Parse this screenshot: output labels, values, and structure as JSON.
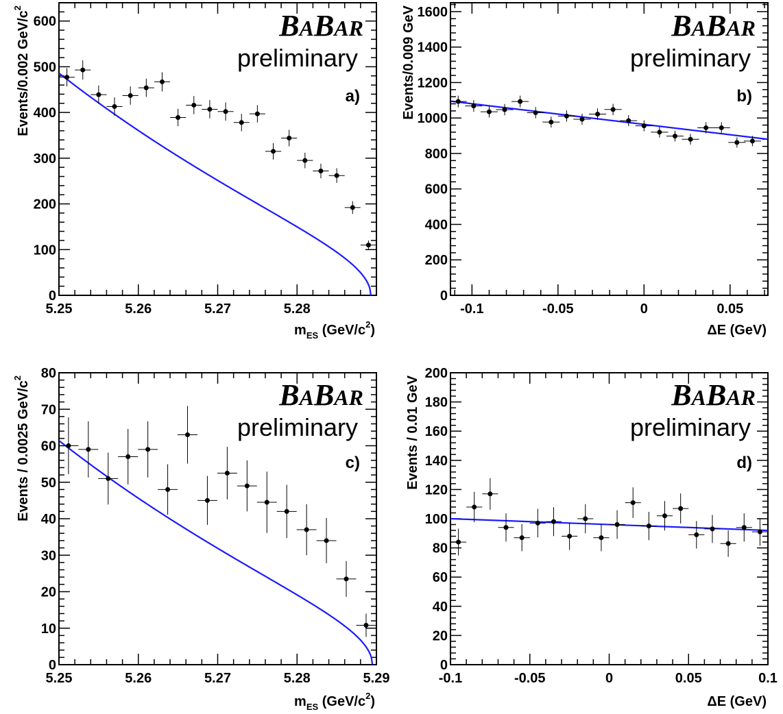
{
  "chart_data": [
    {
      "type": "scatter",
      "panel_label": "a)",
      "logo": "BABAR",
      "logo_parts": [
        "B",
        "A",
        "B",
        "AR"
      ],
      "preliminary": "preliminary",
      "xlabel": "m",
      "xlabel_sub": "ES",
      "xlabel_unit": " (GeV/c",
      "xlabel_sup": "2",
      "xlabel_end": ")",
      "ylabel": "Events/0.002 GeV/c",
      "ylabel_sup": "2",
      "xlim": [
        5.25,
        5.29
      ],
      "ylim": [
        0,
        640
      ],
      "x_ticks": [
        5.25,
        5.26,
        5.27,
        5.28
      ],
      "x_tick_labels": [
        "5.25",
        "5.26",
        "5.27",
        "5.28"
      ],
      "y_ticks": [
        0,
        100,
        200,
        300,
        400,
        500,
        600
      ],
      "y_tick_labels": [
        "0",
        "100",
        "200",
        "300",
        "400",
        "500",
        "600"
      ],
      "x_err": 0.001,
      "points": [
        {
          "x": 5.251,
          "y": 477,
          "err": 20
        },
        {
          "x": 5.253,
          "y": 493,
          "err": 21
        },
        {
          "x": 5.255,
          "y": 439,
          "err": 20
        },
        {
          "x": 5.257,
          "y": 413,
          "err": 20
        },
        {
          "x": 5.259,
          "y": 437,
          "err": 20
        },
        {
          "x": 5.261,
          "y": 454,
          "err": 20
        },
        {
          "x": 5.263,
          "y": 467,
          "err": 21
        },
        {
          "x": 5.265,
          "y": 389,
          "err": 19
        },
        {
          "x": 5.267,
          "y": 416,
          "err": 20
        },
        {
          "x": 5.269,
          "y": 407,
          "err": 20
        },
        {
          "x": 5.271,
          "y": 402,
          "err": 20
        },
        {
          "x": 5.273,
          "y": 378,
          "err": 19
        },
        {
          "x": 5.275,
          "y": 397,
          "err": 19
        },
        {
          "x": 5.277,
          "y": 315,
          "err": 18
        },
        {
          "x": 5.279,
          "y": 344,
          "err": 18
        },
        {
          "x": 5.281,
          "y": 295,
          "err": 17
        },
        {
          "x": 5.283,
          "y": 272,
          "err": 16
        },
        {
          "x": 5.285,
          "y": 262,
          "err": 16
        },
        {
          "x": 5.287,
          "y": 192,
          "err": 14
        },
        {
          "x": 5.289,
          "y": 110,
          "err": 10
        }
      ],
      "fit": {
        "type": "argus",
        "norm": 486,
        "x0": 5.25,
        "endpoint": 5.2893,
        "curvature": 0.6
      }
    },
    {
      "type": "scatter",
      "panel_label": "b)",
      "logo": "BABAR",
      "logo_parts": [
        "B",
        "A",
        "B",
        "AR"
      ],
      "preliminary": "preliminary",
      "xlabel": "ΔE (GeV)",
      "ylabel": "Events/0.009 GeV",
      "xlim": [
        -0.1125,
        0.072
      ],
      "ylim": [
        0,
        1650
      ],
      "x_ticks": [
        -0.1,
        -0.05,
        0,
        0.05
      ],
      "x_tick_labels": [
        "-0.1",
        "-0.05",
        "0",
        "0.05"
      ],
      "y_ticks": [
        0,
        200,
        400,
        600,
        800,
        1000,
        1200,
        1400,
        1600
      ],
      "y_tick_labels": [
        "0",
        "200",
        "400",
        "600",
        "800",
        "1000",
        "1200",
        "1400",
        "1600"
      ],
      "x_err": 0.005,
      "points": [
        {
          "x": -0.108,
          "y": 1093,
          "err": 33
        },
        {
          "x": -0.099,
          "y": 1068,
          "err": 33
        },
        {
          "x": -0.09,
          "y": 1035,
          "err": 32
        },
        {
          "x": -0.081,
          "y": 1047,
          "err": 32
        },
        {
          "x": -0.072,
          "y": 1093,
          "err": 33
        },
        {
          "x": -0.063,
          "y": 1030,
          "err": 32
        },
        {
          "x": -0.054,
          "y": 977,
          "err": 31
        },
        {
          "x": -0.045,
          "y": 1011,
          "err": 32
        },
        {
          "x": -0.036,
          "y": 993,
          "err": 31
        },
        {
          "x": -0.027,
          "y": 1022,
          "err": 32
        },
        {
          "x": -0.018,
          "y": 1048,
          "err": 32
        },
        {
          "x": -0.009,
          "y": 985,
          "err": 31
        },
        {
          "x": 0.0,
          "y": 956,
          "err": 31
        },
        {
          "x": 0.009,
          "y": 920,
          "err": 30
        },
        {
          "x": 0.018,
          "y": 898,
          "err": 30
        },
        {
          "x": 0.027,
          "y": 880,
          "err": 30
        },
        {
          "x": 0.036,
          "y": 945,
          "err": 31
        },
        {
          "x": 0.045,
          "y": 945,
          "err": 31
        },
        {
          "x": 0.054,
          "y": 862,
          "err": 29
        },
        {
          "x": 0.063,
          "y": 870,
          "err": 29
        }
      ],
      "fit": {
        "type": "line",
        "points": [
          [
            -0.1125,
            1095
          ],
          [
            0.072,
            880
          ]
        ]
      }
    },
    {
      "type": "scatter",
      "panel_label": "c)",
      "logo": "BABAR",
      "logo_parts": [
        "B",
        "A",
        "B",
        "AR"
      ],
      "preliminary": "preliminary",
      "xlabel": "m",
      "xlabel_sub": "ES",
      "xlabel_unit": " (GeV/c",
      "xlabel_sup": "2",
      "xlabel_end": ")",
      "ylabel": "Events / 0.0025 GeV/c",
      "ylabel_sup": "2",
      "xlim": [
        5.25,
        5.29
      ],
      "ylim": [
        0,
        80
      ],
      "x_ticks": [
        5.25,
        5.26,
        5.27,
        5.28,
        5.29
      ],
      "x_tick_labels": [
        "5.25",
        "5.26",
        "5.27",
        "5.28",
        "5.29"
      ],
      "y_ticks": [
        0,
        10,
        20,
        30,
        40,
        50,
        60,
        70,
        80
      ],
      "y_tick_labels": [
        "0",
        "10",
        "20",
        "30",
        "40",
        "50",
        "60",
        "70",
        "80"
      ],
      "x_err": 0.00125,
      "points": [
        {
          "x": 5.2512,
          "y": 60.0,
          "err": 7.8
        },
        {
          "x": 5.2537,
          "y": 59.0,
          "err": 7.7
        },
        {
          "x": 5.2562,
          "y": 51.0,
          "err": 7.1
        },
        {
          "x": 5.2587,
          "y": 57.0,
          "err": 7.6
        },
        {
          "x": 5.2612,
          "y": 59.0,
          "err": 7.7
        },
        {
          "x": 5.2637,
          "y": 48.0,
          "err": 6.9
        },
        {
          "x": 5.2662,
          "y": 63.0,
          "err": 7.9
        },
        {
          "x": 5.2687,
          "y": 45.0,
          "err": 6.7
        },
        {
          "x": 5.2712,
          "y": 52.5,
          "err": 7.2
        },
        {
          "x": 5.2737,
          "y": 49.0,
          "err": 7.0
        },
        {
          "x": 5.2762,
          "y": 44.5,
          "err": 8.4
        },
        {
          "x": 5.2787,
          "y": 42.0,
          "err": 7.3
        },
        {
          "x": 5.2812,
          "y": 37.0,
          "err": 7.0
        },
        {
          "x": 5.2837,
          "y": 34.0,
          "err": 6.2
        },
        {
          "x": 5.2862,
          "y": 23.5,
          "err": 4.9
        },
        {
          "x": 5.2887,
          "y": 10.8,
          "err": 3.2
        }
      ],
      "fit": {
        "type": "argus",
        "norm": 61.4,
        "x0": 5.25,
        "endpoint": 5.2895,
        "curvature": 0.6
      }
    },
    {
      "type": "scatter",
      "panel_label": "d)",
      "logo": "BABAR",
      "logo_parts": [
        "B",
        "A",
        "B",
        "AR"
      ],
      "preliminary": "preliminary",
      "xlabel": "ΔE (GeV)",
      "ylabel": "Events / 0.01 GeV",
      "xlim": [
        -0.1,
        0.1
      ],
      "ylim": [
        0,
        200
      ],
      "x_ticks": [
        -0.1,
        -0.05,
        0,
        0.05,
        0.1
      ],
      "x_tick_labels": [
        "-0.1",
        "-0.05",
        "0",
        "0.05",
        "0.1"
      ],
      "y_ticks": [
        0,
        20,
        40,
        60,
        80,
        100,
        120,
        140,
        160,
        180,
        200
      ],
      "y_tick_labels": [
        "0",
        "20",
        "40",
        "60",
        "80",
        "100",
        "120",
        "140",
        "160",
        "180",
        "200"
      ],
      "x_err": 0.005,
      "points": [
        {
          "x": -0.095,
          "y": 84,
          "err": 9.2
        },
        {
          "x": -0.085,
          "y": 108,
          "err": 10.4
        },
        {
          "x": -0.075,
          "y": 117,
          "err": 10.8
        },
        {
          "x": -0.065,
          "y": 94,
          "err": 9.7
        },
        {
          "x": -0.055,
          "y": 87,
          "err": 9.3
        },
        {
          "x": -0.045,
          "y": 97,
          "err": 9.8
        },
        {
          "x": -0.035,
          "y": 98,
          "err": 9.9
        },
        {
          "x": -0.025,
          "y": 88,
          "err": 9.4
        },
        {
          "x": -0.015,
          "y": 100,
          "err": 10.0
        },
        {
          "x": -0.005,
          "y": 87,
          "err": 9.3
        },
        {
          "x": 0.005,
          "y": 96,
          "err": 9.8
        },
        {
          "x": 0.015,
          "y": 111,
          "err": 10.5
        },
        {
          "x": 0.025,
          "y": 95,
          "err": 9.7
        },
        {
          "x": 0.035,
          "y": 102,
          "err": 10.1
        },
        {
          "x": 0.045,
          "y": 107,
          "err": 10.3
        },
        {
          "x": 0.055,
          "y": 89,
          "err": 9.4
        },
        {
          "x": 0.065,
          "y": 93,
          "err": 9.6
        },
        {
          "x": 0.075,
          "y": 83,
          "err": 9.1
        },
        {
          "x": 0.085,
          "y": 94,
          "err": 9.7
        },
        {
          "x": 0.095,
          "y": 91,
          "err": 9.5
        }
      ],
      "fit": {
        "type": "line",
        "points": [
          [
            -0.1,
            100
          ],
          [
            0.1,
            92
          ]
        ]
      }
    }
  ],
  "colors": {
    "fit": "#1a1aff",
    "points": "#000000",
    "axes": "#000000"
  }
}
